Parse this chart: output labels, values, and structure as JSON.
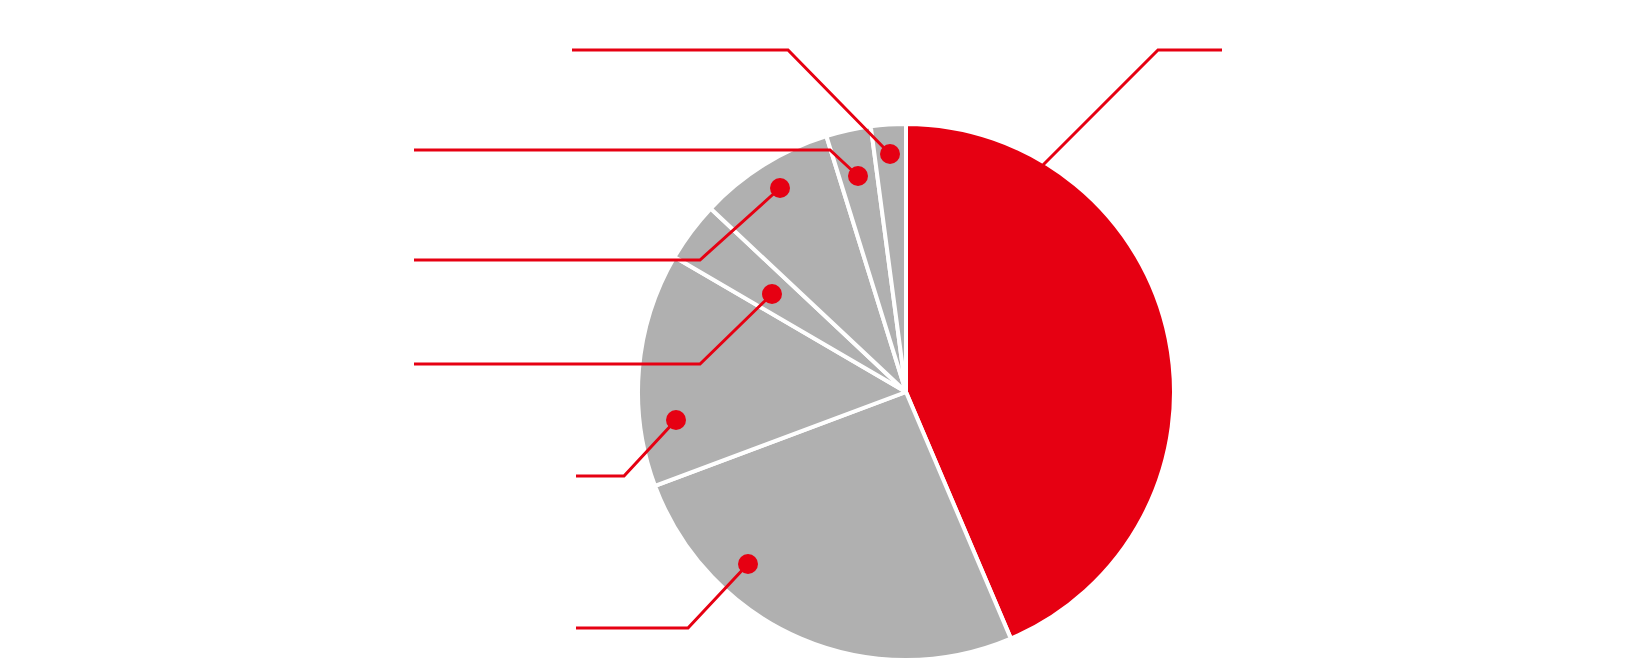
{
  "chart_data": {
    "type": "pie",
    "categories": [
      null,
      null,
      null,
      null,
      null,
      null,
      null
    ],
    "values": [
      43.6,
      25.7,
      14.1,
      3.6,
      8.2,
      2.7,
      2.1
    ],
    "colors": [
      "#e60012",
      "#b0b0b0",
      "#b0b0b0",
      "#b0b0b0",
      "#b0b0b0",
      "#b0b0b0",
      "#b0b0b0"
    ],
    "legend": false
  }
}
